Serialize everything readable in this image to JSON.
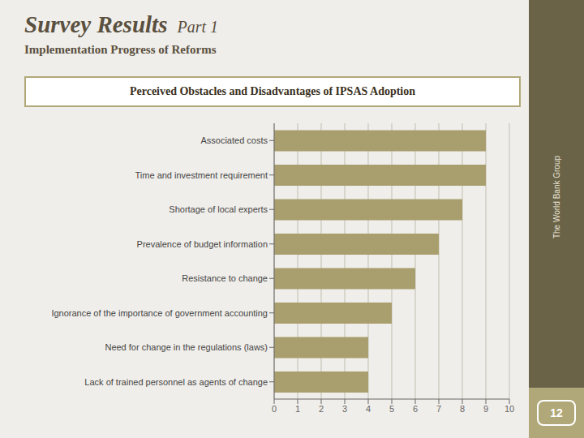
{
  "chart_data": {
    "type": "bar",
    "title": "Perceived Obstacles and Disadvantages of IPSAS Adoption",
    "subtitle": "Implementation Progress of Reforms",
    "annotations": [
      "Survey Results",
      "Part 1",
      "The World Bank Group",
      "12"
    ],
    "orientation": "horizontal",
    "categories": [
      "Lack of trained personnel as agents of change",
      "Need for change in the regulations (laws)",
      "Ignorance of the importance of government accounting",
      "Resistance to change",
      "Prevalence of budget information",
      "Shortage of local experts",
      "Time and investment requirement",
      "Associated costs"
    ],
    "values": [
      4,
      4,
      5,
      6,
      7,
      8,
      9,
      9
    ],
    "color": "#a89e6e",
    "xlim": [
      0,
      10
    ],
    "xticks": [
      0,
      1,
      2,
      3,
      4,
      5,
      6,
      7,
      8,
      9,
      10
    ],
    "grid": true
  }
}
